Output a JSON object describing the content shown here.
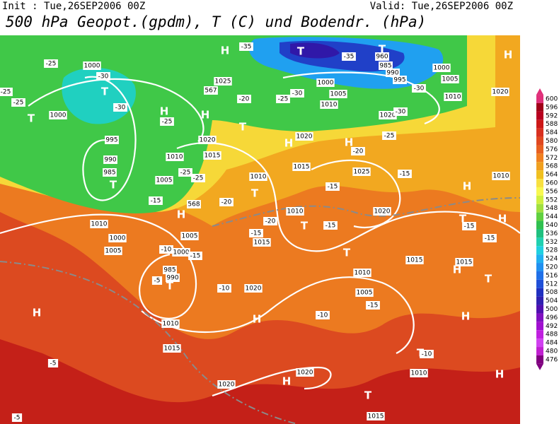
{
  "header": {
    "init": "Init : Tue,26SEP2006 00Z",
    "valid": "Valid: Tue,26SEP2006 00Z",
    "title": "500 hPa Geopot.(gpdm), T (C) und Bodendr. (hPa)"
  },
  "colorbar": {
    "ticks": [
      600,
      596,
      592,
      588,
      584,
      580,
      576,
      572,
      568,
      564,
      560,
      556,
      552,
      548,
      544,
      540,
      536,
      532,
      528,
      524,
      520,
      516,
      512,
      508,
      504,
      500,
      496,
      492,
      488,
      484,
      480,
      476
    ],
    "colors": [
      "#e0307a",
      "#a00018",
      "#b80020",
      "#cc1818",
      "#d83020",
      "#e04820",
      "#e86020",
      "#f08020",
      "#f0a020",
      "#f0c020",
      "#f8e040",
      "#f8f850",
      "#d0f040",
      "#a0e040",
      "#60d040",
      "#30c050",
      "#20c080",
      "#20d0b0",
      "#20d0e0",
      "#20b0f0",
      "#2090f0",
      "#2070e8",
      "#2050d8",
      "#2030c0",
      "#3020b0",
      "#5010b0",
      "#8010c0",
      "#a010d0",
      "#c020e0",
      "#d040f0",
      "#c020d0",
      "#800080"
    ]
  },
  "map": {
    "labels": [
      "H",
      "T",
      "T",
      "960",
      "985",
      "990",
      "995",
      "-35",
      "-35",
      "1000",
      "1005",
      "1010",
      "1020",
      "H",
      "-30",
      "-30",
      "1000",
      "1005",
      "1010",
      "-25",
      "1020",
      "-30",
      "-25",
      "1000",
      "-25",
      "-30",
      "T",
      "-30",
      "H",
      "1025",
      "567",
      "-20",
      "H",
      "T",
      "1020",
      "1015",
      "1010",
      "-25",
      "-25",
      "-25",
      "T",
      "1000",
      "995",
      "990",
      "985",
      "T",
      "1005",
      "-25",
      "-25",
      "-15",
      "568",
      "H",
      "-20",
      "1010",
      "T",
      "1020",
      "H",
      "1015",
      "H",
      "-20",
      "1025",
      "-15",
      "1020",
      "1010",
      "1010",
      "T",
      "-20",
      "-15",
      "1015",
      "-15",
      "-15",
      "H",
      "T",
      "-15",
      "H",
      "-15",
      "1010",
      "1000",
      "1005",
      "1005",
      "-10",
      "1000",
      "-15",
      "985",
      "990",
      "T",
      "-5",
      "-10",
      "1020",
      "T",
      "1015",
      "1015",
      "H",
      "T",
      "1010",
      "1005",
      "-15",
      "-10",
      "H",
      "H",
      "H",
      "1010",
      "1015",
      "1010",
      "T",
      "-10",
      "-5",
      "H",
      "1020",
      "1020",
      "T",
      "H",
      "1015",
      "-5"
    ]
  }
}
